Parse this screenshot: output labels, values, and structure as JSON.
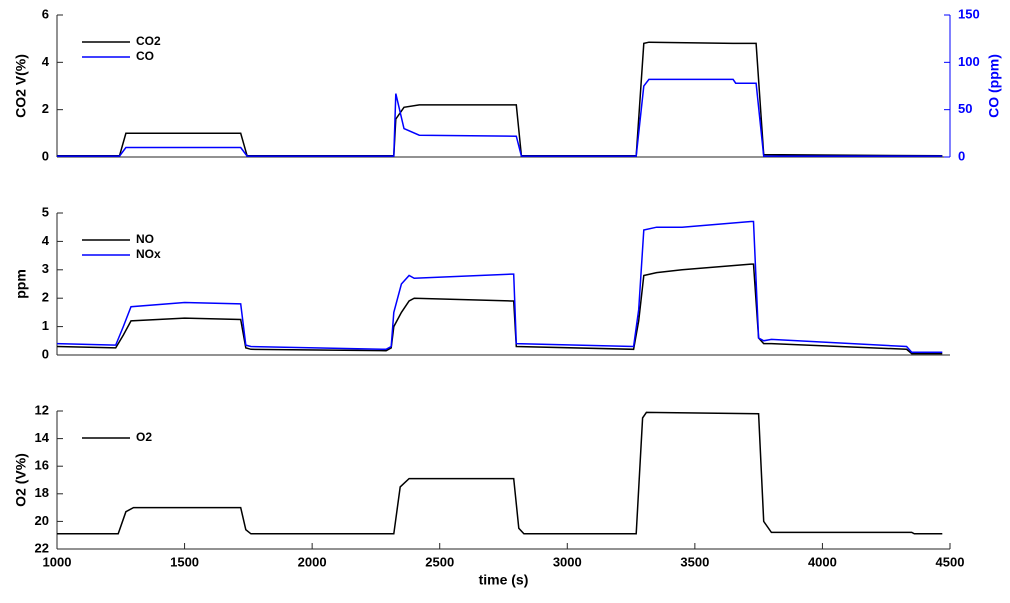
{
  "chart_data": [
    {
      "type": "line",
      "ylabel": "CO2 V(%)",
      "y2label": "CO (ppm)",
      "legend": "upper-left",
      "xlim": [
        1000,
        4500
      ],
      "ylim": [
        0,
        6
      ],
      "yticks": [
        0,
        2,
        4,
        6
      ],
      "y2lim": [
        0,
        150
      ],
      "y2ticks": [
        0,
        50,
        100,
        150
      ],
      "y2color": "#0000ff",
      "x": [
        1000,
        1245,
        1270,
        1720,
        1745,
        2320,
        2328,
        2360,
        2420,
        2800,
        2820,
        3270,
        3300,
        3320,
        3650,
        3660,
        3740,
        3770,
        4470
      ],
      "series": [
        {
          "name": "CO2",
          "color": "#000000",
          "values": [
            0.05,
            0.05,
            1.0,
            1.0,
            0.05,
            0.05,
            1.6,
            2.1,
            2.2,
            2.2,
            0.05,
            0.05,
            4.8,
            4.85,
            4.8,
            4.8,
            4.8,
            0.1,
            0.05
          ]
        },
        {
          "name": "CO",
          "color": "#0000ff",
          "axis": "y2",
          "values": [
            1,
            1,
            10,
            10,
            1,
            1,
            67,
            30,
            23,
            22,
            1,
            1,
            75,
            82,
            82,
            78,
            78,
            1,
            1
          ]
        }
      ]
    },
    {
      "type": "line",
      "ylabel": "ppm",
      "legend": "upper-left",
      "xlim": [
        1000,
        4500
      ],
      "ylim": [
        0,
        5
      ],
      "yticks": [
        0,
        1,
        2,
        3,
        4,
        5
      ],
      "x": [
        1000,
        1230,
        1260,
        1290,
        1500,
        1720,
        1740,
        1760,
        2290,
        2310,
        2320,
        2350,
        2380,
        2400,
        2780,
        2790,
        2800,
        3260,
        3280,
        3300,
        3350,
        3450,
        3720,
        3730,
        3750,
        3770,
        3800,
        4330,
        4350,
        4470
      ],
      "series": [
        {
          "name": "NO",
          "color": "#000000",
          "values": [
            0.3,
            0.25,
            0.7,
            1.2,
            1.3,
            1.25,
            0.25,
            0.2,
            0.15,
            0.25,
            1.0,
            1.5,
            1.9,
            2.0,
            1.9,
            1.9,
            0.3,
            0.2,
            1.2,
            2.8,
            2.9,
            3.0,
            3.2,
            3.2,
            0.6,
            0.4,
            0.4,
            0.2,
            0.05,
            0.05
          ]
        },
        {
          "name": "NOx",
          "color": "#0000ff",
          "values": [
            0.4,
            0.35,
            1.0,
            1.7,
            1.85,
            1.8,
            0.35,
            0.3,
            0.2,
            0.3,
            1.5,
            2.5,
            2.8,
            2.7,
            2.85,
            2.85,
            0.4,
            0.3,
            1.6,
            4.4,
            4.5,
            4.5,
            4.7,
            4.7,
            0.6,
            0.5,
            0.55,
            0.3,
            0.1,
            0.1
          ]
        }
      ]
    },
    {
      "type": "line",
      "ylabel": "O2 (V%)",
      "xlabel": "time (s)",
      "legend": "upper-left",
      "xlim": [
        1000,
        4500
      ],
      "xticks": [
        1000,
        1500,
        2000,
        2500,
        3000,
        3500,
        4000,
        4500
      ],
      "ylim": [
        22,
        12
      ],
      "yticks": [
        12,
        14,
        16,
        18,
        20,
        22
      ],
      "x": [
        1000,
        1240,
        1270,
        1300,
        1720,
        1740,
        1760,
        2320,
        2345,
        2380,
        2790,
        2810,
        2830,
        3270,
        3295,
        3310,
        3750,
        3770,
        3800,
        4350,
        4360,
        4470
      ],
      "series": [
        {
          "name": "O2",
          "color": "#000000",
          "values": [
            20.9,
            20.9,
            19.3,
            19.0,
            19.0,
            20.6,
            20.9,
            20.9,
            17.5,
            16.9,
            16.9,
            20.5,
            20.9,
            20.9,
            12.5,
            12.1,
            12.2,
            20.0,
            20.8,
            20.8,
            20.9,
            20.9
          ]
        }
      ]
    }
  ]
}
